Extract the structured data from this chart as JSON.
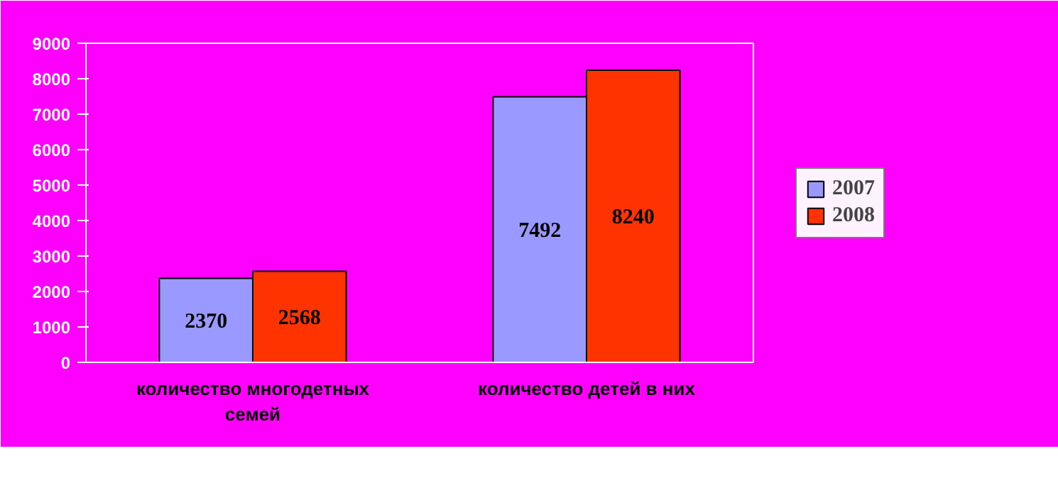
{
  "chart_data": {
    "type": "bar",
    "categories": [
      "количество многодетных семей",
      "количество детей в них"
    ],
    "series": [
      {
        "name": "2007",
        "color": "#9999ff",
        "values": [
          2370,
          7492
        ]
      },
      {
        "name": "2008",
        "color": "#ff3300",
        "values": [
          2568,
          8240
        ]
      }
    ],
    "ylim": [
      0,
      9000
    ],
    "yticks": [
      0,
      1000,
      2000,
      3000,
      4000,
      5000,
      6000,
      7000,
      8000,
      9000
    ],
    "data_labels": true,
    "legend": "right",
    "grid": false
  }
}
